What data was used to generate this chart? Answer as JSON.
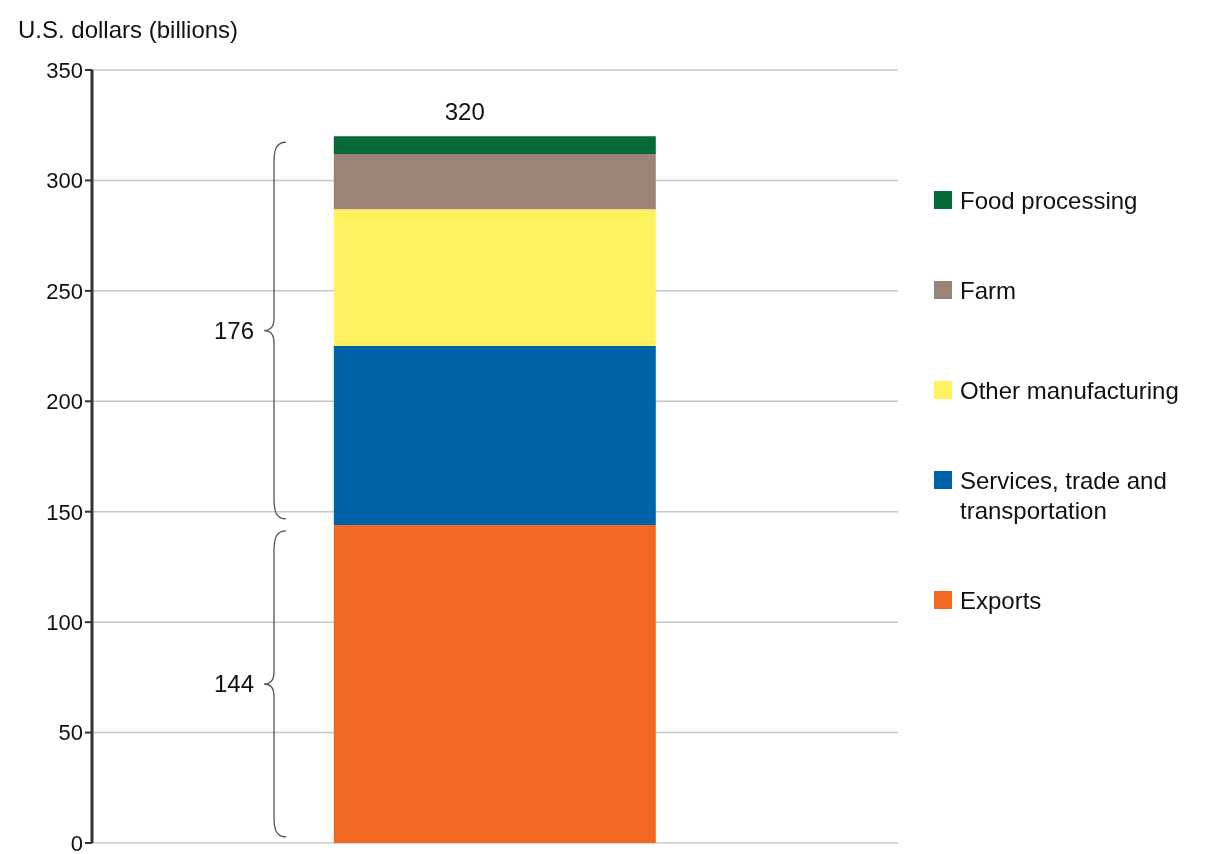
{
  "chart_data": {
    "type": "bar",
    "ylabel": "U.S. dollars (billions)",
    "categories": [
      null
    ],
    "stacked": true,
    "series": [
      {
        "name": "Exports",
        "color": "#f26722",
        "values": [
          144
        ]
      },
      {
        "name": "Services, trade and transportation",
        "color": "#0062a8",
        "values": [
          81
        ]
      },
      {
        "name": "Other manufacturing",
        "color": "#fff15f",
        "values": [
          62
        ]
      },
      {
        "name": "Farm",
        "color": "#9a8478",
        "values": [
          25
        ]
      },
      {
        "name": "Food processing",
        "color": "#066a38",
        "values": [
          8
        ]
      }
    ],
    "totals": [
      "320"
    ],
    "annotations": [
      "176",
      "144"
    ],
    "ylim": [
      0,
      350
    ],
    "yticks": [
      0,
      50,
      100,
      150,
      200,
      250,
      300,
      350
    ],
    "grid": "y",
    "legend": "right",
    "tick_labels": "y"
  }
}
